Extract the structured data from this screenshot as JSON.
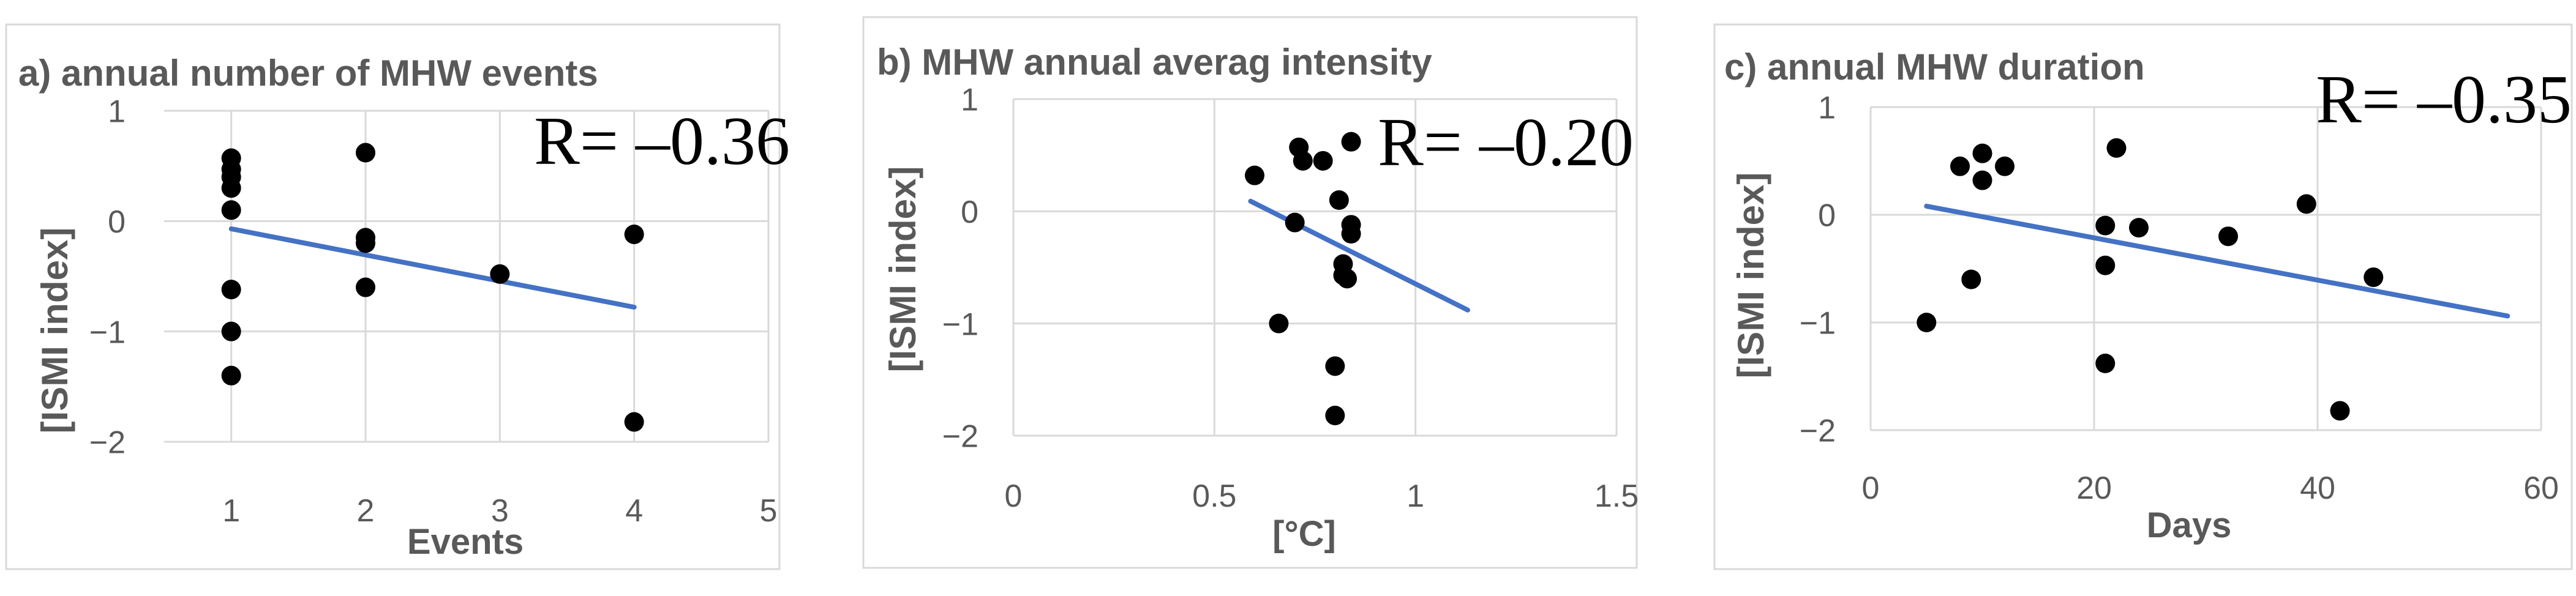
{
  "chart_data": [
    {
      "type": "scatter",
      "title": "a) annual number of MHW events",
      "xlabel": "Events",
      "ylabel": "[ISMI index]",
      "annotation": "R= –0.36",
      "xlim": [
        0.5,
        5
      ],
      "ylim": [
        -2,
        1
      ],
      "xticks": [
        1,
        2,
        3,
        4,
        5
      ],
      "yticks": [
        -2,
        -1,
        0,
        1
      ],
      "ytick_labels": [
        "−2",
        "−1",
        "0",
        "1"
      ],
      "points": [
        {
          "x": 1,
          "y": 0.57
        },
        {
          "x": 1,
          "y": 0.47
        },
        {
          "x": 1,
          "y": 0.4
        },
        {
          "x": 1,
          "y": 0.3
        },
        {
          "x": 1,
          "y": 0.1
        },
        {
          "x": 1,
          "y": -0.62
        },
        {
          "x": 1,
          "y": -1.0
        },
        {
          "x": 1,
          "y": -1.4
        },
        {
          "x": 2,
          "y": 0.62
        },
        {
          "x": 2,
          "y": -0.15
        },
        {
          "x": 2,
          "y": -0.2
        },
        {
          "x": 2,
          "y": -0.6
        },
        {
          "x": 3,
          "y": -0.48
        },
        {
          "x": 4,
          "y": -0.12
        },
        {
          "x": 4,
          "y": -1.82
        }
      ],
      "trendline": {
        "x": [
          1,
          4
        ],
        "y": [
          -0.07,
          -0.78
        ]
      },
      "grid": true,
      "colors": {
        "points": "#000000",
        "trend": "#4472C4",
        "grid": "#D9D9D9",
        "text": "#595959"
      }
    },
    {
      "type": "scatter",
      "title": "b) MHW annual averag intensity",
      "xlabel": "[°C]",
      "ylabel": "[ISMI index]",
      "annotation": "R= –0.20",
      "xlim": [
        0,
        1.5
      ],
      "ylim": [
        -2,
        1
      ],
      "xticks": [
        0,
        0.5,
        1,
        1.5
      ],
      "yticks": [
        -2,
        -1,
        0,
        1
      ],
      "ytick_labels": [
        "−2",
        "−1",
        "0",
        "1"
      ],
      "points": [
        {
          "x": 0.6,
          "y": 0.32
        },
        {
          "x": 0.71,
          "y": 0.57
        },
        {
          "x": 0.72,
          "y": 0.45
        },
        {
          "x": 0.77,
          "y": 0.45
        },
        {
          "x": 0.7,
          "y": -0.1
        },
        {
          "x": 0.66,
          "y": -1.0
        },
        {
          "x": 0.81,
          "y": 0.1
        },
        {
          "x": 0.84,
          "y": 0.62
        },
        {
          "x": 0.84,
          "y": -0.12
        },
        {
          "x": 0.84,
          "y": -0.2
        },
        {
          "x": 0.82,
          "y": -0.47
        },
        {
          "x": 0.82,
          "y": -0.57
        },
        {
          "x": 0.83,
          "y": -0.6
        },
        {
          "x": 0.8,
          "y": -1.38
        },
        {
          "x": 0.8,
          "y": -1.82
        }
      ],
      "trendline": {
        "x": [
          0.59,
          1.13
        ],
        "y": [
          0.09,
          -0.88
        ]
      },
      "grid": true,
      "colors": {
        "points": "#000000",
        "trend": "#4472C4",
        "grid": "#D9D9D9",
        "text": "#595959"
      }
    },
    {
      "type": "scatter",
      "title": "c) annual MHW duration",
      "xlabel": "Days",
      "ylabel": "[ISMI index]",
      "annotation": "R= –0.35",
      "xlim": [
        0,
        60
      ],
      "ylim": [
        -2,
        1
      ],
      "xticks": [
        0,
        20,
        40,
        60
      ],
      "yticks": [
        -2,
        -1,
        0,
        1
      ],
      "ytick_labels": [
        "−2",
        "−1",
        "0",
        "1"
      ],
      "points": [
        {
          "x": 5,
          "y": -1.0
        },
        {
          "x": 8,
          "y": 0.45
        },
        {
          "x": 9,
          "y": -0.6
        },
        {
          "x": 10,
          "y": 0.57
        },
        {
          "x": 10,
          "y": 0.32
        },
        {
          "x": 12,
          "y": 0.45
        },
        {
          "x": 21,
          "y": -0.1
        },
        {
          "x": 21,
          "y": -0.47
        },
        {
          "x": 21,
          "y": -1.38
        },
        {
          "x": 22,
          "y": 0.62
        },
        {
          "x": 24,
          "y": -0.12
        },
        {
          "x": 32,
          "y": -0.2
        },
        {
          "x": 39,
          "y": 0.1
        },
        {
          "x": 42,
          "y": -1.82
        },
        {
          "x": 45,
          "y": -0.58
        }
      ],
      "trendline": {
        "x": [
          5,
          57
        ],
        "y": [
          0.08,
          -0.94
        ]
      },
      "grid": true,
      "colors": {
        "points": "#000000",
        "trend": "#4472C4",
        "grid": "#D9D9D9",
        "text": "#595959"
      }
    }
  ]
}
